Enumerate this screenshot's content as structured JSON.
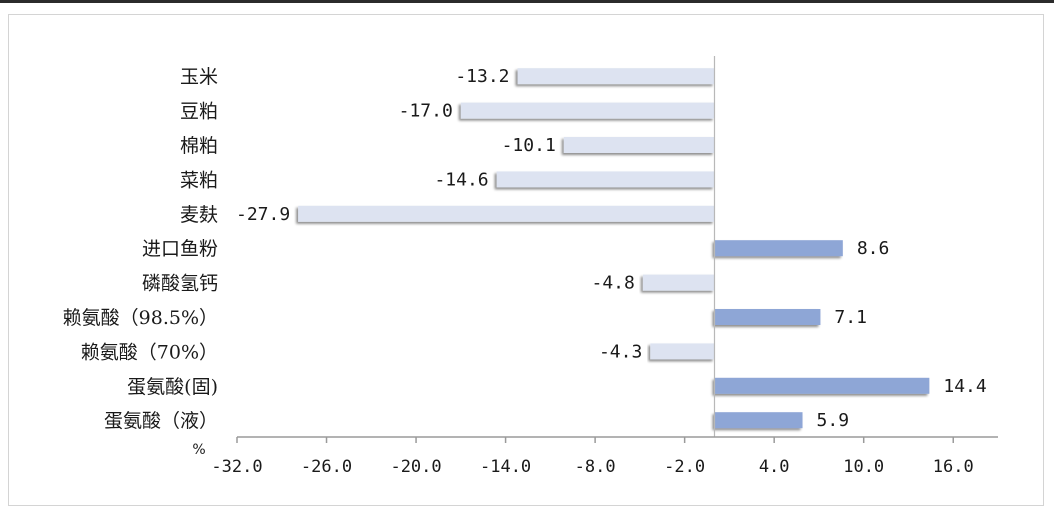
{
  "chart_data": {
    "type": "bar",
    "orientation": "horizontal",
    "categories": [
      "玉米",
      "豆粕",
      "棉粕",
      "菜粕",
      "麦麸",
      "进口鱼粉",
      "磷酸氢钙",
      "赖氨酸（98.5%）",
      "赖氨酸（70%）",
      "蛋氨酸(固)",
      "蛋氨酸（液）"
    ],
    "values": [
      -13.2,
      -17.0,
      -10.1,
      -14.6,
      -27.9,
      8.6,
      -4.8,
      7.1,
      -4.3,
      14.4,
      5.9
    ],
    "value_labels": [
      "-13.2",
      "-17.0",
      "-10.1",
      "-14.6",
      "-27.9",
      "8.6",
      "-4.8",
      "7.1",
      "-4.3",
      "14.4",
      "5.9"
    ],
    "x_ticks": [
      -32,
      -26,
      -20,
      -14,
      -8,
      -2,
      4,
      10,
      16
    ],
    "x_tick_labels": [
      "-32.0",
      "-26.0",
      "-20.0",
      "-14.0",
      "-8.0",
      "-2.0",
      "4.0",
      "10.0",
      "16.0"
    ],
    "xlim": [
      -32,
      19
    ],
    "unit_label": "%",
    "grid": false,
    "colors": {
      "negative": "#dde3f1",
      "positive": "#8ea6d6",
      "axis": "#9a9a9a"
    }
  }
}
